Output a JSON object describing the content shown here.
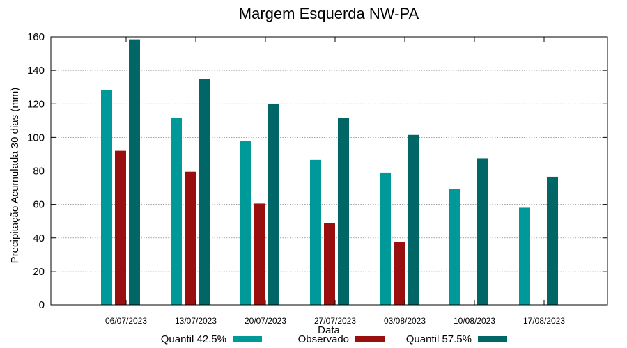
{
  "chart_data": {
    "type": "bar",
    "title": "Margem Esquerda NW-PA",
    "xlabel": "Data",
    "ylabel": "Precipitação Acumulada 30 dias (mm)",
    "ylim": [
      0,
      160
    ],
    "yticks": [
      0,
      20,
      40,
      60,
      80,
      100,
      120,
      140,
      160
    ],
    "grid": true,
    "legend_position": "bottom",
    "categories": [
      "06/07/2023",
      "13/07/2023",
      "20/07/2023",
      "27/07/2023",
      "03/08/2023",
      "10/08/2023",
      "17/08/2023"
    ],
    "series": [
      {
        "name": "Quantil 42.5%",
        "color": "#009999",
        "values": [
          128,
          111.5,
          98,
          86.5,
          79,
          69,
          58
        ]
      },
      {
        "name": "Observado",
        "color": "#990F0F",
        "values": [
          92,
          79.5,
          60.5,
          49,
          37.5,
          null,
          null
        ]
      },
      {
        "name": "Quantil 57.5%",
        "color": "#006666",
        "values": [
          158.5,
          135,
          120,
          111.5,
          101.5,
          87.5,
          76.5
        ]
      }
    ]
  }
}
